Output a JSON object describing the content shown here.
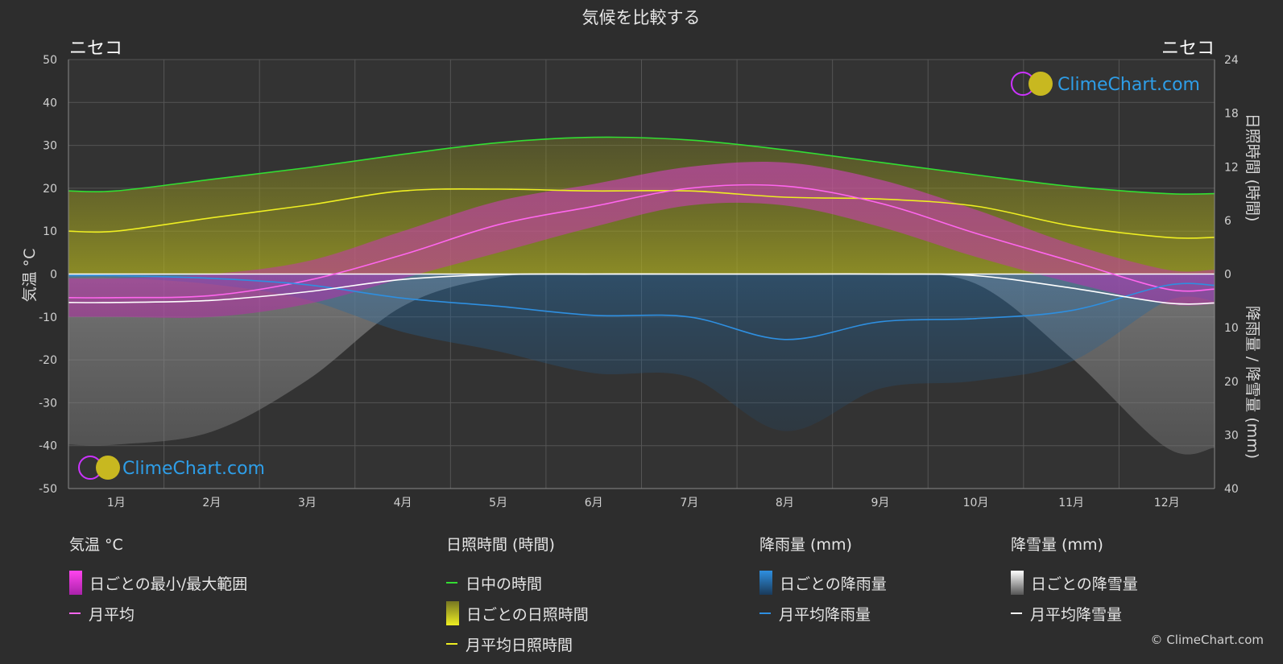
{
  "title": "気候を比較する",
  "location_left": "ニセコ",
  "location_right": "ニセコ",
  "logo_text": "ClimeChart.com",
  "copyright": "© ClimeChart.com",
  "chart_data": {
    "type": "area",
    "categories": [
      "1月",
      "2月",
      "3月",
      "4月",
      "5月",
      "6月",
      "7月",
      "8月",
      "9月",
      "10月",
      "11月",
      "12月"
    ],
    "left_axis": {
      "label": "気温 °C",
      "ticks": [
        50,
        40,
        30,
        20,
        10,
        0,
        -10,
        -20,
        -30,
        -40,
        -50
      ],
      "range": [
        -50,
        50
      ]
    },
    "right_axis_top": {
      "label": "日照時間 (時間)",
      "ticks": [
        24,
        18,
        12,
        6,
        0
      ],
      "range": [
        0,
        24
      ]
    },
    "right_axis_bottom": {
      "label": "降雨量 / 降雪量 (mm)",
      "ticks": [
        0,
        10,
        20,
        30,
        40
      ],
      "range": [
        0,
        40
      ]
    },
    "series": [
      {
        "name": "日中の時間",
        "unit": "hours",
        "color": "#33dd33",
        "values": [
          9.3,
          10.6,
          11.9,
          13.4,
          14.7,
          15.3,
          15.0,
          13.9,
          12.5,
          11.1,
          9.8,
          9.0
        ]
      },
      {
        "name": "月平均日照時間",
        "unit": "hours",
        "color": "#eeee22",
        "values": [
          4.8,
          6.3,
          7.7,
          9.3,
          9.5,
          9.3,
          9.3,
          8.6,
          8.4,
          7.6,
          5.4,
          4.1
        ]
      },
      {
        "name": "月平均",
        "unit": "°C",
        "color": "#ff66ee",
        "values": [
          -5.5,
          -5.0,
          -1.5,
          4.5,
          11.5,
          15.8,
          20.0,
          20.5,
          16.5,
          9.5,
          3.0,
          -3.5
        ]
      },
      {
        "name": "月平均降雨量",
        "unit": "mm",
        "color": "#2e8fe0",
        "values": [
          0.3,
          0.8,
          2.0,
          4.5,
          6.0,
          7.7,
          8.0,
          12.2,
          8.9,
          8.3,
          6.8,
          2.1
        ]
      },
      {
        "name": "月平均降雪量",
        "unit": "mm",
        "color": "#ffffff",
        "values": [
          5.3,
          4.9,
          3.3,
          1.0,
          0.1,
          0,
          0,
          0,
          0,
          0.3,
          2.6,
          5.4
        ]
      }
    ],
    "daily_range": {
      "name": "日ごとの最小/最大範囲",
      "max": [
        -1,
        0,
        3,
        10,
        17,
        21,
        25,
        26,
        22,
        15,
        7,
        1
      ],
      "min": [
        -10,
        -10,
        -7,
        -1,
        5,
        11,
        16,
        16,
        11,
        4,
        -2,
        -7
      ]
    },
    "legend": {
      "temperature": {
        "title": "気温 °C",
        "items": [
          "日ごとの最小/最大範囲",
          "月平均"
        ]
      },
      "sunshine": {
        "title": "日照時間 (時間)",
        "items": [
          "日中の時間",
          "日ごとの日照時間",
          "月平均日照時間"
        ]
      },
      "rain": {
        "title": "降雨量 (mm)",
        "items": [
          "日ごとの降雨量",
          "月平均降雨量"
        ]
      },
      "snow": {
        "title": "降雪量 (mm)",
        "items": [
          "日ごとの降雪量",
          "月平均降雪量"
        ]
      }
    },
    "colors": {
      "daylight": "#33dd33",
      "sunshine": "#eeee22",
      "temp": "#ff66ee",
      "temp_range": "#dd22cc",
      "rain": "#2e8fe0",
      "snow": "#ffffff",
      "grid": "#555555",
      "background": "#2d2d2d"
    },
    "grid": true
  }
}
